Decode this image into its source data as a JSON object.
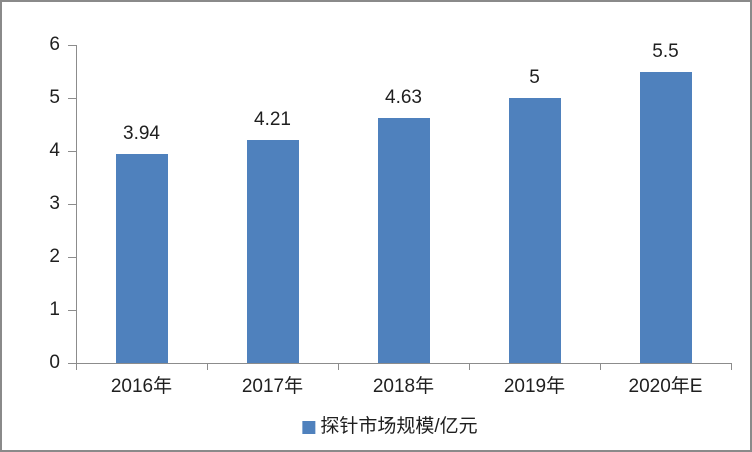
{
  "chart_data": {
    "type": "bar",
    "title": "",
    "categories": [
      "2016年",
      "2017年",
      "2018年",
      "2019年",
      "2020年E"
    ],
    "values": [
      3.94,
      4.21,
      4.63,
      5,
      5.5
    ],
    "value_labels": [
      "3.94",
      "4.21",
      "4.63",
      "5",
      "5.5"
    ],
    "legend": "探针市场规模/亿元",
    "legend_position": "bottom-center",
    "xlabel": "",
    "ylabel": "",
    "ylim": [
      0,
      6
    ],
    "yticks": [
      0,
      1,
      2,
      3,
      4,
      5,
      6
    ],
    "grid": false,
    "colors": {
      "bar": "#4F81BD",
      "axis": "#8C8C8C",
      "text": "#1F1F1F",
      "background": "#FFFFFF",
      "border": "#8A8A8A"
    }
  }
}
